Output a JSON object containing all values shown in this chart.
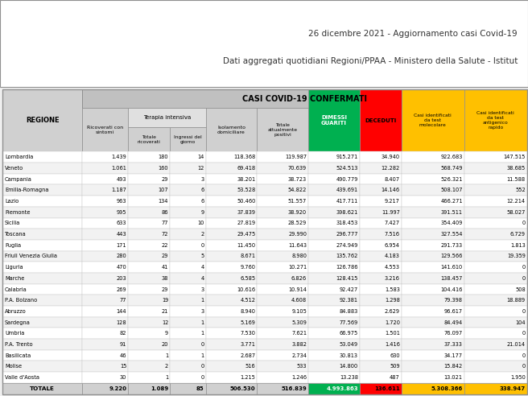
{
  "title1": "26 dicembre 2021 - Aggiornamento casi Covid-19",
  "title2": "Dati aggregati quotidiani Regioni/PPAA - Ministero della Salute - Istitut",
  "header_main": "CASI COVID-19 CONFERMATI",
  "subheader_terapia": "Terapia intensiva",
  "regions": [
    "Lombardia",
    "Veneto",
    "Campania",
    "Emilia-Romagna",
    "Lazio",
    "Piemonte",
    "Sicilia",
    "Toscana",
    "Puglia",
    "Friuli Venezia Giulia",
    "Liguria",
    "Marche",
    "Calabria",
    "P.A. Bolzano",
    "Abruzzo",
    "Sardegna",
    "Umbria",
    "P.A. Trento",
    "Basilicata",
    "Molise",
    "Valle d'Aosta"
  ],
  "data": [
    [
      "1.439",
      "180",
      "14",
      "118.368",
      "119.987",
      "915.271",
      "34.940",
      "922.683",
      "147.515"
    ],
    [
      "1.061",
      "160",
      "12",
      "69.418",
      "70.639",
      "524.513",
      "12.282",
      "568.749",
      "38.685"
    ],
    [
      "493",
      "29",
      "3",
      "38.201",
      "38.723",
      "490.779",
      "8.407",
      "526.321",
      "11.588"
    ],
    [
      "1.187",
      "107",
      "6",
      "53.528",
      "54.822",
      "439.691",
      "14.146",
      "508.107",
      "552"
    ],
    [
      "963",
      "134",
      "6",
      "50.460",
      "51.557",
      "417.711",
      "9.217",
      "466.271",
      "12.214"
    ],
    [
      "995",
      "86",
      "9",
      "37.839",
      "38.920",
      "398.621",
      "11.997",
      "391.511",
      "58.027"
    ],
    [
      "633",
      "77",
      "10",
      "27.819",
      "28.529",
      "318.453",
      "7.427",
      "354.409",
      "0"
    ],
    [
      "443",
      "72",
      "2",
      "29.475",
      "29.990",
      "296.777",
      "7.516",
      "327.554",
      "6.729"
    ],
    [
      "171",
      "22",
      "0",
      "11.450",
      "11.643",
      "274.949",
      "6.954",
      "291.733",
      "1.813"
    ],
    [
      "280",
      "29",
      "5",
      "8.671",
      "8.980",
      "135.762",
      "4.183",
      "129.566",
      "19.359"
    ],
    [
      "470",
      "41",
      "4",
      "9.760",
      "10.271",
      "126.786",
      "4.553",
      "141.610",
      "0"
    ],
    [
      "203",
      "38",
      "4",
      "6.585",
      "6.826",
      "128.415",
      "3.216",
      "138.457",
      "0"
    ],
    [
      "269",
      "29",
      "3",
      "10.616",
      "10.914",
      "92.427",
      "1.583",
      "104.416",
      "508"
    ],
    [
      "77",
      "19",
      "1",
      "4.512",
      "4.608",
      "92.381",
      "1.298",
      "79.398",
      "18.889"
    ],
    [
      "144",
      "21",
      "3",
      "8.940",
      "9.105",
      "84.883",
      "2.629",
      "96.617",
      "0"
    ],
    [
      "128",
      "12",
      "1",
      "5.169",
      "5.309",
      "77.569",
      "1.720",
      "84.494",
      "104"
    ],
    [
      "82",
      "9",
      "1",
      "7.530",
      "7.621",
      "66.975",
      "1.501",
      "76.097",
      "0"
    ],
    [
      "91",
      "20",
      "0",
      "3.771",
      "3.882",
      "53.049",
      "1.416",
      "37.333",
      "21.014"
    ],
    [
      "46",
      "1",
      "1",
      "2.687",
      "2.734",
      "30.813",
      "630",
      "34.177",
      "0"
    ],
    [
      "15",
      "2",
      "0",
      "516",
      "533",
      "14.800",
      "509",
      "15.842",
      "0"
    ],
    [
      "30",
      "1",
      "0",
      "1.215",
      "1.246",
      "13.238",
      "487",
      "13.021",
      "1.950"
    ]
  ],
  "totals": [
    "TOTALE",
    "9.220",
    "1.089",
    "85",
    "506.530",
    "516.839",
    "4.993.863",
    "136.611",
    "5.308.366",
    "338.947"
  ],
  "bg_color": "#f0f0f0",
  "header_bg": "#d0d0d0",
  "main_header_bg": "#c0c0c0",
  "terapia_bg": "#e0e0e0",
  "green_color": "#00b050",
  "red_color": "#ff0000",
  "yellow_color": "#ffc000",
  "total_row_bg": "#d0d0d0",
  "row_colors": [
    "#ffffff",
    "#f2f2f2"
  ],
  "border_color": "#909090",
  "light_border": "#c8c8c8"
}
